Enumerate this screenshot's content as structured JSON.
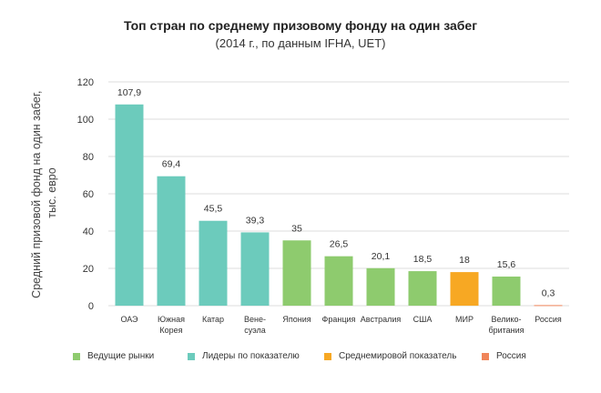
{
  "chart_data": {
    "type": "bar",
    "title": "Топ стран по среднему призовому фонду на один забег",
    "subtitle": "(2014 г., по данным IFHA, UET)",
    "ylabel_lines": [
      "Средний призовой фонд на один забег,",
      "тыс. евро"
    ],
    "xlabel": "",
    "ylim": [
      0,
      120
    ],
    "yticks": [
      0,
      20,
      40,
      60,
      80,
      100,
      120
    ],
    "grid": true,
    "legend_position": "bottom",
    "categories": [
      [
        "ОАЭ"
      ],
      [
        "Южная",
        "Корея"
      ],
      [
        "Катар"
      ],
      [
        "Вене-",
        "суэла"
      ],
      [
        "Япония"
      ],
      [
        "Франция"
      ],
      [
        "Австралия"
      ],
      [
        "США"
      ],
      [
        "МИР"
      ],
      [
        "Велико-",
        "британия"
      ],
      [
        "Россия"
      ]
    ],
    "values": [
      107.9,
      69.4,
      45.5,
      39.3,
      35,
      26.5,
      20.1,
      18.5,
      18,
      15.6,
      0.3
    ],
    "value_labels": [
      "107,9",
      "69,4",
      "45,5",
      "39,3",
      "35",
      "26,5",
      "20,1",
      "18,5",
      "18",
      "15,6",
      "0,3"
    ],
    "groups": [
      "leaders",
      "leaders",
      "leaders",
      "leaders",
      "markets",
      "markets",
      "markets",
      "markets",
      "world",
      "markets",
      "russia"
    ],
    "legend": [
      {
        "key": "markets",
        "label": "Ведущие рынки",
        "color": "#8ecb6e"
      },
      {
        "key": "leaders",
        "label": "Лидеры по показателю",
        "color": "#6ccbbc"
      },
      {
        "key": "world",
        "label": "Среднемировой показатель",
        "color": "#f7a823"
      },
      {
        "key": "russia",
        "label": "Россия",
        "color": "#f0855a"
      }
    ],
    "colors": {
      "markets": "#8ecb6e",
      "leaders": "#6ccbbc",
      "world": "#f7a823",
      "russia": "#f0855a",
      "grid": "#dddddd"
    }
  }
}
